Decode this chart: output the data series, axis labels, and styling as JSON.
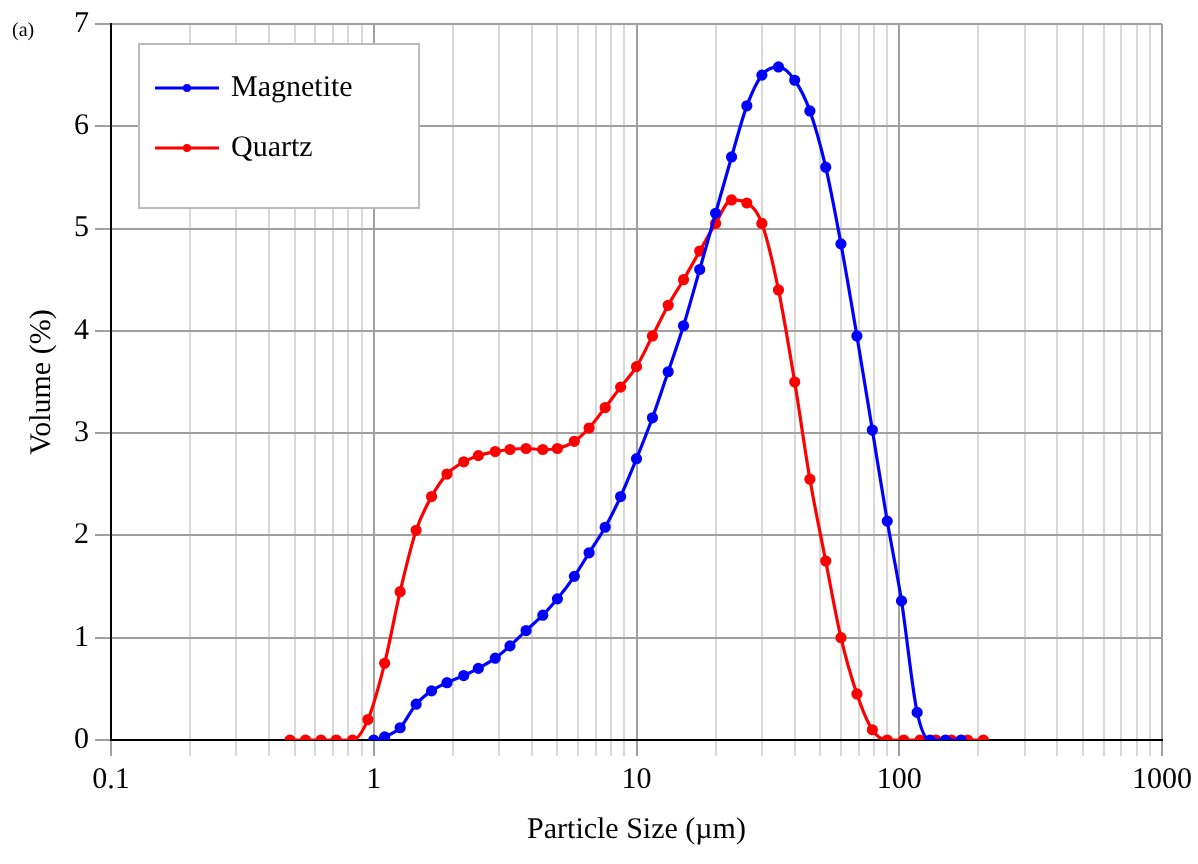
{
  "chart_data": {
    "type": "line",
    "xlabel": "Particle Size (µm)",
    "ylabel": "Volume (%)",
    "annotations": [
      "(a)"
    ],
    "log": "x",
    "xlim": [
      0.1,
      1000
    ],
    "xticks": [
      0.1,
      {
        "value": 0.2,
        "label": null
      },
      {
        "value": 0.3,
        "label": null
      },
      {
        "value": 0.4,
        "label": null
      },
      {
        "value": 0.5,
        "label": null
      },
      {
        "value": 0.6,
        "label": null
      },
      {
        "value": 0.7,
        "label": null
      },
      {
        "value": 0.8,
        "label": null
      },
      {
        "value": 0.9,
        "label": null
      },
      1,
      {
        "value": 2,
        "label": null
      },
      {
        "value": 3,
        "label": null
      },
      {
        "value": 4,
        "label": null
      },
      {
        "value": 5,
        "label": null
      },
      {
        "value": 6,
        "label": null
      },
      {
        "value": 7,
        "label": null
      },
      {
        "value": 8,
        "label": null
      },
      {
        "value": 9,
        "label": null
      },
      10,
      {
        "value": 20,
        "label": null
      },
      {
        "value": 30,
        "label": null
      },
      {
        "value": 40,
        "label": null
      },
      {
        "value": 50,
        "label": null
      },
      {
        "value": 60,
        "label": null
      },
      {
        "value": 70,
        "label": null
      },
      {
        "value": 80,
        "label": null
      },
      {
        "value": 90,
        "label": null
      },
      100,
      {
        "value": 200,
        "label": null
      },
      {
        "value": 300,
        "label": null
      },
      {
        "value": 400,
        "label": null
      },
      {
        "value": 500,
        "label": null
      },
      {
        "value": 600,
        "label": null
      },
      {
        "value": 700,
        "label": null
      },
      {
        "value": 800,
        "label": null
      },
      {
        "value": 900,
        "label": null
      },
      1000
    ],
    "ylim": [
      0,
      7
    ],
    "yticks": [
      0,
      1,
      2,
      3,
      4,
      5,
      6,
      7
    ],
    "grid": true,
    "legend": "top left",
    "marker": "circle",
    "line_style": "solid",
    "series": [
      {
        "name": "Magnetite",
        "color": "#0000ff",
        "x": [
          1.0,
          1.1,
          1.26,
          1.45,
          1.66,
          1.9,
          2.2,
          2.5,
          2.9,
          3.3,
          3.8,
          4.4,
          5,
          5.8,
          6.6,
          7.6,
          8.7,
          10,
          11.5,
          13.2,
          15.1,
          17.4,
          20,
          23,
          26.3,
          30,
          34.7,
          40,
          45.7,
          52.5,
          60,
          69,
          79,
          90,
          102,
          117,
          131,
          150,
          172
        ],
        "values": [
          0,
          0.03,
          0.12,
          0.35,
          0.48,
          0.56,
          0.63,
          0.7,
          0.8,
          0.92,
          1.07,
          1.22,
          1.38,
          1.6,
          1.83,
          2.08,
          2.38,
          2.75,
          3.15,
          3.6,
          4.05,
          4.6,
          5.15,
          5.7,
          6.2,
          6.5,
          6.58,
          6.45,
          6.15,
          5.6,
          4.85,
          3.95,
          3.03,
          2.14,
          1.36,
          0.27,
          0,
          0,
          0
        ]
      },
      {
        "name": "Quartz",
        "color": "#ff0000",
        "x": [
          0.48,
          0.55,
          0.63,
          0.72,
          0.83,
          0.95,
          1.1,
          1.26,
          1.45,
          1.66,
          1.9,
          2.2,
          2.5,
          2.9,
          3.3,
          3.8,
          4.4,
          5,
          5.8,
          6.6,
          7.6,
          8.7,
          10,
          11.5,
          13.2,
          15.1,
          17.4,
          20,
          23,
          26.3,
          30,
          34.7,
          40,
          45.7,
          52.5,
          60,
          69,
          79,
          90,
          104,
          120,
          138,
          158,
          182,
          209
        ],
        "values": [
          0,
          0,
          0,
          0,
          0,
          0.2,
          0.75,
          1.45,
          2.05,
          2.38,
          2.6,
          2.72,
          2.78,
          2.82,
          2.84,
          2.85,
          2.84,
          2.85,
          2.92,
          3.05,
          3.25,
          3.45,
          3.65,
          3.95,
          4.25,
          4.5,
          4.78,
          5.05,
          5.28,
          5.25,
          5.05,
          4.4,
          3.5,
          2.55,
          1.75,
          1.0,
          0.45,
          0.1,
          0,
          0,
          0,
          0,
          0,
          0,
          0
        ]
      }
    ]
  }
}
